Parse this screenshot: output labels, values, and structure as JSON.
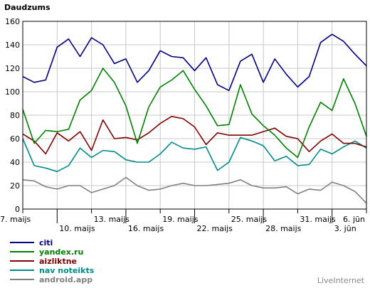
{
  "chart_data": {
    "type": "line",
    "ylabel": "Daudzums",
    "ylim": [
      0,
      160
    ],
    "yticks": [
      0,
      20,
      40,
      60,
      80,
      100,
      120,
      140,
      160
    ],
    "x": [
      "7. maijs",
      "8",
      "9",
      "10. maijs",
      "11",
      "12",
      "13. maijs",
      "14",
      "15",
      "16. maijs",
      "17",
      "18",
      "19. maijs",
      "20",
      "21",
      "22. maijs",
      "23",
      "24",
      "25. maijs",
      "26",
      "27",
      "28. maijs",
      "29",
      "30",
      "31. maijs",
      "1",
      "2",
      "3. jūn",
      "4",
      "5",
      "6. jūn"
    ],
    "x_tick_labels": [
      {
        "index": 0,
        "label": "7. maijs",
        "row": 1
      },
      {
        "index": 3,
        "label": "10. maijs",
        "row": 2
      },
      {
        "index": 6,
        "label": "13. maijs",
        "row": 1
      },
      {
        "index": 9,
        "label": "16. maijs",
        "row": 2
      },
      {
        "index": 12,
        "label": "19. maijs",
        "row": 1
      },
      {
        "index": 15,
        "label": "22. maijs",
        "row": 2
      },
      {
        "index": 18,
        "label": "25. maijs",
        "row": 1
      },
      {
        "index": 21,
        "label": "28. maijs",
        "row": 2
      },
      {
        "index": 24,
        "label": "31. maijs",
        "row": 1
      },
      {
        "index": 27,
        "label": "3. jūn",
        "row": 2
      },
      {
        "index": 30,
        "label": "6. jūn",
        "row": 1
      }
    ],
    "grid": true,
    "legend_position": "bottom-left",
    "series": [
      {
        "name": "citi",
        "color": "#000080",
        "values": [
          113,
          108,
          110,
          138,
          145,
          130,
          146,
          140,
          124,
          128,
          108,
          118,
          135,
          130,
          129,
          118,
          129,
          106,
          101,
          126,
          132,
          108,
          128,
          115,
          104,
          113,
          142,
          149,
          143,
          132,
          122
        ]
      },
      {
        "name": "yandex.ru",
        "color": "#008000",
        "values": [
          85,
          56,
          67,
          66,
          68,
          93,
          101,
          120,
          108,
          88,
          56,
          87,
          104,
          110,
          118,
          102,
          88,
          71,
          72,
          106,
          81,
          71,
          63,
          52,
          44,
          70,
          91,
          84,
          111,
          90,
          62
        ]
      },
      {
        "name": "aizliktne",
        "color": "#800000",
        "values": [
          64,
          58,
          47,
          65,
          58,
          66,
          50,
          76,
          60,
          61,
          59,
          65,
          73,
          79,
          77,
          70,
          55,
          65,
          63,
          63,
          63,
          66,
          69,
          62,
          60,
          49,
          58,
          64,
          56,
          56,
          53
        ]
      },
      {
        "name": "nav noteikts",
        "color": "#008b8b",
        "values": [
          60,
          37,
          35,
          32,
          37,
          52,
          44,
          50,
          49,
          42,
          40,
          40,
          47,
          57,
          52,
          51,
          53,
          33,
          40,
          61,
          58,
          54,
          41,
          45,
          37,
          38,
          51,
          47,
          53,
          58,
          52
        ]
      },
      {
        "name": "android.app",
        "color": "#808080",
        "values": [
          25,
          24,
          19,
          17,
          20,
          20,
          14,
          17,
          20,
          27,
          20,
          16,
          17,
          20,
          22,
          20,
          20,
          21,
          22,
          25,
          20,
          18,
          18,
          19,
          13,
          17,
          16,
          23,
          20,
          15,
          5
        ]
      }
    ]
  },
  "brand": "LiveInternet"
}
